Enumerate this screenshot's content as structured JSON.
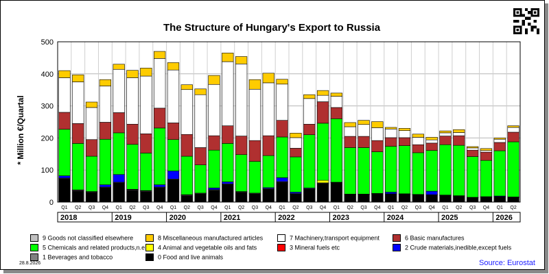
{
  "title": "The Structure of Hungary's Export to Russia",
  "ylabel": "* Million €/Quartal",
  "date": "28.8.2026",
  "source": "Source: Eurostat",
  "chart_data": {
    "type": "bar",
    "stacked": true,
    "title": "The Structure of Hungary's Export to Russia",
    "ylabel": "* Million €/Quartal",
    "ylim": [
      0,
      500
    ],
    "yticks": [
      0,
      100,
      200,
      300,
      400,
      500
    ],
    "grid": true,
    "categories": [
      "2018 Q1",
      "2018 Q2",
      "2018 Q3",
      "2018 Q4",
      "2019 Q1",
      "2019 Q2",
      "2019 Q3",
      "2019 Q4",
      "2020 Q1",
      "2020 Q2",
      "2020 Q3",
      "2020 Q4",
      "2021 Q1",
      "2021 Q2",
      "2021 Q3",
      "2021 Q4",
      "2022 Q1",
      "2022 Q2",
      "2022 Q3",
      "2022 Q4",
      "2023 Q1",
      "2023 Q2",
      "2023 Q3",
      "2023 Q4",
      "2024 Q1",
      "2024 Q2",
      "2024 Q3",
      "2024 Q4",
      "2025 Q1",
      "2025 Q2",
      "2025 Q3",
      "2025 Q4",
      "2026 Q1",
      "2026 Q2"
    ],
    "quarter_labels": [
      "Q1",
      "Q2",
      "Q3",
      "Q4",
      "Q1",
      "Q2",
      "Q3",
      "Q4",
      "Q1",
      "Q2",
      "Q3",
      "Q4",
      "Q1",
      "Q2",
      "Q3",
      "Q4",
      "Q1",
      "Q2",
      "Q3",
      "Q4",
      "Q1",
      "Q2",
      "Q3",
      "Q4",
      "Q1",
      "Q2",
      "Q3",
      "Q4",
      "Q1",
      "Q2",
      "Q3",
      "Q4",
      "Q1",
      "Q2"
    ],
    "years": [
      {
        "label": "2018",
        "start": 0,
        "count": 4
      },
      {
        "label": "2019",
        "start": 4,
        "count": 4
      },
      {
        "label": "2020",
        "start": 8,
        "count": 4
      },
      {
        "label": "2021",
        "start": 12,
        "count": 4
      },
      {
        "label": "2022",
        "start": 16,
        "count": 4
      },
      {
        "label": "2023",
        "start": 20,
        "count": 4
      },
      {
        "label": "2024",
        "start": 24,
        "count": 4
      },
      {
        "label": "2025",
        "start": 28,
        "count": 4
      },
      {
        "label": "2026",
        "start": 32,
        "count": 2
      }
    ],
    "series": [
      {
        "name": "0 Food and live animals",
        "color": "#000000",
        "values": [
          73,
          35,
          30,
          45,
          60,
          37,
          33,
          45,
          70,
          20,
          25,
          37,
          55,
          30,
          25,
          40,
          62,
          25,
          40,
          57,
          60,
          23,
          23,
          25,
          25,
          24,
          22,
          22,
          20,
          18,
          13,
          15,
          16,
          14
        ]
      },
      {
        "name": "1 Beverages and tobacco",
        "color": "#808080",
        "values": [
          2,
          2,
          2,
          2,
          2,
          2,
          2,
          2,
          2,
          2,
          2,
          2,
          2,
          2,
          2,
          2,
          2,
          2,
          2,
          2,
          1,
          1,
          1,
          1,
          1,
          1,
          1,
          1,
          1,
          1,
          1,
          1,
          1,
          1
        ]
      },
      {
        "name": "2 Crude materials,inedible,except fuels",
        "color": "#0000ff",
        "values": [
          7,
          1,
          1,
          7,
          24,
          1,
          1,
          7,
          25,
          1,
          1,
          5,
          6,
          1,
          1,
          3,
          12,
          4,
          2,
          1,
          1,
          1,
          1,
          1,
          5,
          1,
          1,
          11,
          1,
          1,
          1,
          1,
          2,
          1
        ]
      },
      {
        "name": "3 Mineral fuels etc",
        "color": "#ff0000",
        "values": [
          0,
          0,
          0,
          0,
          0,
          0,
          0,
          0,
          0,
          0,
          0,
          0,
          0,
          0,
          0,
          0,
          0,
          0,
          0,
          0,
          0,
          0,
          0,
          0,
          0,
          0,
          0,
          0,
          0,
          0,
          0,
          0,
          0,
          0
        ]
      },
      {
        "name": "4 Animal and vegetable oils and fats",
        "color": "#ffff00",
        "values": [
          0,
          0,
          0,
          0,
          0,
          0,
          0,
          0,
          0,
          0,
          0,
          0,
          0,
          0,
          0,
          0,
          0,
          0,
          0,
          8,
          0,
          0,
          0,
          0,
          0,
          0,
          0,
          0,
          0,
          0,
          0,
          0,
          0,
          0
        ]
      },
      {
        "name": "5 Chemicals and related products,n.e.s.",
        "color": "#00ff00",
        "values": [
          145,
          145,
          110,
          142,
          130,
          140,
          117,
          177,
          98,
          120,
          88,
          118,
          120,
          115,
          99,
          100,
          127,
          110,
          166,
          178,
          198,
          145,
          145,
          130,
          143,
          150,
          130,
          127,
          157,
          157,
          127,
          113,
          141,
          172
        ]
      },
      {
        "name": "6 Basic manufactures",
        "color": "#b03030",
        "values": [
          53,
          62,
          52,
          53,
          63,
          63,
          60,
          62,
          52,
          68,
          54,
          45,
          55,
          58,
          65,
          62,
          52,
          27,
          33,
          67,
          35,
          35,
          35,
          35,
          27,
          25,
          25,
          23,
          27,
          30,
          20,
          26,
          26,
          30
        ]
      },
      {
        "name": "7 Machinery,transport equipment",
        "color": "#ffffff",
        "values": [
          108,
          130,
          100,
          113,
          135,
          145,
          180,
          155,
          165,
          140,
          165,
          160,
          200,
          225,
          160,
          165,
          113,
          33,
          80,
          20,
          35,
          30,
          37,
          40,
          27,
          22,
          23,
          10,
          10,
          10,
          7,
          5,
          10,
          15
        ]
      },
      {
        "name": "8 Miscellaneous manufactured articles",
        "color": "#ffcc00",
        "values": [
          22,
          22,
          17,
          20,
          16,
          23,
          25,
          22,
          23,
          15,
          18,
          28,
          27,
          23,
          30,
          30,
          15,
          14,
          12,
          15,
          10,
          13,
          13,
          19,
          5,
          7,
          10,
          8,
          6,
          9,
          4,
          6,
          4,
          5
        ]
      },
      {
        "name": "9 Goods not classified elsewhere",
        "color": "#c0c0c0",
        "values": [
          0,
          0,
          0,
          0,
          0,
          0,
          0,
          0,
          0,
          0,
          0,
          0,
          0,
          0,
          0,
          0,
          0,
          0,
          0,
          0,
          0,
          0,
          0,
          0,
          0,
          0,
          0,
          0,
          0,
          0,
          0,
          0,
          0,
          0
        ]
      }
    ],
    "legend_position": "bottom"
  },
  "legend": [
    {
      "label": "9 Goods not classified elsewhere",
      "color": "#c0c0c0"
    },
    {
      "label": "8 Miscellaneous manufactured articles",
      "color": "#ffcc00"
    },
    {
      "label": "7 Machinery,transport equipment",
      "color": "#ffffff"
    },
    {
      "label": "6 Basic manufactures",
      "color": "#b03030"
    },
    {
      "label": "5 Chemicals and related products,n.e.s.",
      "color": "#00ff00"
    },
    {
      "label": "4 Animal and vegetable oils and fats",
      "color": "#ffff00"
    },
    {
      "label": "3 Mineral fuels etc",
      "color": "#ff0000"
    },
    {
      "label": "2 Crude materials,inedible,except fuels",
      "color": "#0000ff"
    },
    {
      "label": "1 Beverages and tobacco",
      "color": "#808080"
    },
    {
      "label": "0 Food and live animals",
      "color": "#000000"
    }
  ]
}
